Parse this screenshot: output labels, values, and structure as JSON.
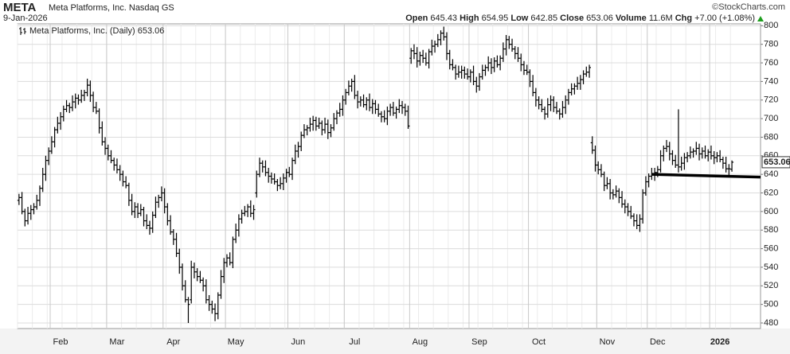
{
  "header": {
    "symbol": "META",
    "company": "Meta Platforms, Inc.",
    "exchange": "Nasdaq GS",
    "date": "9-Jan-2026",
    "credit": "©StockCharts.com",
    "quote": [
      {
        "label": "Open",
        "value": "645.43"
      },
      {
        "label": "High",
        "value": "654.95"
      },
      {
        "label": "Low",
        "value": "642.85"
      },
      {
        "label": "Close",
        "value": "653.06"
      },
      {
        "label": "Volume",
        "value": "11.6M"
      },
      {
        "label": "Chg",
        "value": "+7.00 (+1.08%)"
      }
    ]
  },
  "chart_data": {
    "type": "ohlc",
    "name": "Meta Platforms, Inc. (Daily)",
    "color": "#000000",
    "grid": true,
    "trendline_color": "#000000",
    "ylim": [
      474,
      802
    ],
    "yticks": [
      480,
      500,
      520,
      540,
      560,
      580,
      600,
      620,
      640,
      660,
      680,
      700,
      720,
      740,
      760,
      780,
      800
    ],
    "categories": [
      null,
      null,
      null,
      null,
      null,
      null,
      null,
      null,
      null,
      null,
      null,
      "Feb",
      null,
      null,
      null,
      null,
      null,
      null,
      null,
      null,
      null,
      null,
      null,
      null,
      null,
      null,
      null,
      null,
      null,
      null,
      "Mar",
      null,
      null,
      null,
      null,
      null,
      null,
      null,
      null,
      null,
      null,
      null,
      null,
      null,
      null,
      null,
      null,
      null,
      null,
      "Apr",
      null,
      null,
      null,
      null,
      null,
      null,
      null,
      null,
      null,
      null,
      null,
      null,
      null,
      null,
      null,
      null,
      null,
      null,
      null,
      null,
      "May",
      null,
      null,
      null,
      null,
      null,
      null,
      null,
      null,
      null,
      null,
      null,
      null,
      null,
      null,
      null,
      null,
      null,
      null,
      null,
      null,
      "Jun",
      null,
      null,
      null,
      null,
      null,
      null,
      null,
      null,
      null,
      null,
      null,
      null,
      null,
      null,
      null,
      null,
      null,
      null,
      "Jul",
      null,
      null,
      null,
      null,
      null,
      null,
      null,
      null,
      null,
      null,
      null,
      null,
      null,
      null,
      null,
      null,
      null,
      null,
      null,
      null,
      null,
      "Aug",
      null,
      null,
      null,
      null,
      null,
      null,
      null,
      null,
      null,
      null,
      null,
      null,
      null,
      null,
      null,
      null,
      null,
      null,
      null,
      "Sep",
      null,
      null,
      null,
      null,
      null,
      null,
      null,
      null,
      null,
      null,
      null,
      null,
      null,
      null,
      null,
      null,
      null,
      null,
      null,
      "Oct",
      null,
      null,
      null,
      null,
      null,
      null,
      null,
      null,
      null,
      null,
      null,
      null,
      null,
      null,
      null,
      null,
      null,
      null,
      null,
      null,
      null,
      null,
      "Nov",
      null,
      null,
      null,
      null,
      null,
      null,
      null,
      null,
      null,
      null,
      null,
      null,
      null,
      null,
      null,
      null,
      "Dec",
      null,
      null,
      null,
      null,
      null,
      null,
      null,
      null,
      null,
      null,
      null,
      null,
      null,
      null,
      null,
      null,
      null,
      null,
      null,
      null,
      "2026",
      null,
      null,
      null,
      null,
      null,
      null,
      null
    ],
    "open": [
      612,
      615,
      600,
      590,
      598,
      602,
      605,
      612,
      625,
      640,
      655,
      665,
      675,
      688,
      695,
      702,
      710,
      714,
      712,
      718,
      722,
      720,
      725,
      728,
      736,
      725,
      712,
      708,
      690,
      675,
      668,
      660,
      655,
      650,
      645,
      640,
      632,
      628,
      612,
      600,
      605,
      598,
      602,
      590,
      585,
      582,
      596,
      610,
      615,
      620,
      605,
      590,
      578,
      570,
      555,
      540,
      520,
      505,
      505,
      540,
      535,
      530,
      526,
      520,
      505,
      500,
      495,
      490,
      510,
      530,
      545,
      550,
      545,
      570,
      580,
      592,
      598,
      600,
      605,
      598,
      620,
      640,
      652,
      648,
      642,
      638,
      635,
      632,
      628,
      630,
      636,
      642,
      640,
      655,
      665,
      670,
      682,
      688,
      690,
      694,
      698,
      692,
      695,
      688,
      694,
      685,
      690,
      700,
      706,
      710,
      720,
      728,
      735,
      740,
      725,
      718,
      720,
      715,
      720,
      712,
      716,
      710,
      705,
      702,
      700,
      708,
      712,
      706,
      710,
      714,
      712,
      708,
      765,
      773,
      770,
      762,
      768,
      765,
      760,
      772,
      778,
      780,
      785,
      792,
      788,
      770,
      758,
      755,
      748,
      750,
      752,
      748,
      745,
      750,
      740,
      735,
      745,
      752,
      755,
      760,
      755,
      762,
      758,
      765,
      775,
      785,
      780,
      775,
      770,
      765,
      758,
      752,
      750,
      740,
      728,
      720,
      715,
      710,
      705,
      715,
      720,
      712,
      708,
      705,
      712,
      720,
      728,
      732,
      735,
      738,
      742,
      748,
      750,
      674,
      666,
      650,
      645,
      640,
      628,
      630,
      620,
      618,
      622,
      615,
      608,
      605,
      600,
      595,
      590,
      585,
      592,
      620,
      632,
      638,
      640,
      642,
      645,
      660,
      668,
      670,
      662,
      655,
      650,
      648,
      652,
      658,
      660,
      664,
      665,
      668,
      662,
      665,
      660,
      664,
      660,
      658,
      660,
      656,
      652,
      646,
      645.43
    ],
    "high": [
      619,
      621,
      603,
      605,
      607,
      609,
      618,
      628,
      647,
      660,
      669,
      681,
      691,
      702,
      707,
      714,
      720,
      717,
      725,
      727,
      726,
      731,
      731,
      743,
      741,
      729,
      718,
      711,
      697,
      680,
      672,
      666,
      658,
      657,
      650,
      644,
      638,
      631,
      619,
      610,
      609,
      608,
      605,
      597,
      590,
      600,
      616,
      618,
      627,
      625,
      609,
      596,
      581,
      577,
      560,
      544,
      526,
      508,
      547,
      545,
      539,
      536,
      529,
      527,
      510,
      504,
      501,
      513,
      537,
      550,
      554,
      556,
      573,
      587,
      597,
      602,
      606,
      608,
      612,
      607,
      644,
      658,
      655,
      655,
      647,
      642,
      641,
      635,
      637,
      641,
      646,
      648,
      658,
      672,
      675,
      686,
      694,
      693,
      701,
      703,
      702,
      701,
      698,
      701,
      699,
      694,
      706,
      709,
      717,
      725,
      732,
      741,
      743,
      747,
      730,
      724,
      726,
      723,
      727,
      721,
      720,
      716,
      708,
      709,
      713,
      716,
      718,
      713,
      721,
      719,
      716,
      714,
      776,
      780,
      777,
      772,
      774,
      771,
      775,
      785,
      784,
      791,
      795,
      799,
      793,
      774,
      764,
      758,
      757,
      757,
      756,
      754,
      753,
      757,
      745,
      749,
      758,
      758,
      767,
      765,
      766,
      768,
      768,
      782,
      790,
      789,
      786,
      778,
      777,
      770,
      762,
      758,
      753,
      747,
      733,
      724,
      721,
      713,
      722,
      725,
      724,
      718,
      711,
      719,
      725,
      732,
      738,
      738,
      745,
      747,
      752,
      756,
      758,
      681,
      671,
      654,
      651,
      643,
      637,
      635,
      624,
      628,
      625,
      622,
      613,
      609,
      606,
      598,
      597,
      597,
      624,
      638,
      641,
      647,
      647,
      649,
      666,
      671,
      677,
      675,
      666,
      661,
      710,
      659,
      663,
      664,
      670,
      668,
      675,
      673,
      669,
      671,
      667,
      671,
      665,
      664,
      666,
      659,
      659,
      651,
      654.95
    ],
    "low": [
      607,
      597,
      584,
      586,
      591,
      597,
      602,
      606,
      621,
      633,
      650,
      662,
      669,
      684,
      688,
      697,
      707,
      706,
      708,
      711,
      715,
      717,
      719,
      724,
      718,
      707,
      705,
      684,
      671,
      661,
      655,
      652,
      644,
      641,
      633,
      627,
      625,
      606,
      596,
      593,
      593,
      595,
      584,
      581,
      575,
      577,
      593,
      604,
      611,
      598,
      585,
      575,
      564,
      551,
      533,
      515,
      502,
      480,
      501,
      528,
      525,
      523,
      514,
      501,
      493,
      490,
      482,
      484,
      506,
      523,
      540,
      542,
      539,
      566,
      573,
      587,
      595,
      594,
      594,
      591,
      615,
      637,
      642,
      638,
      631,
      630,
      629,
      622,
      624,
      623,
      631,
      637,
      634,
      651,
      658,
      665,
      679,
      682,
      686,
      687,
      687,
      689,
      682,
      684,
      678,
      680,
      687,
      694,
      702,
      703,
      715,
      725,
      729,
      721,
      711,
      713,
      712,
      709,
      708,
      705,
      705,
      702,
      696,
      696,
      693,
      703,
      703,
      700,
      706,
      705,
      703,
      689,
      759,
      764,
      755,
      757,
      760,
      757,
      754,
      768,
      771,
      777,
      779,
      784,
      763,
      753,
      752,
      742,
      744,
      743,
      743,
      742,
      739,
      736,
      728,
      730,
      742,
      746,
      751,
      748,
      750,
      755,
      752,
      761,
      768,
      775,
      772,
      764,
      761,
      751,
      747,
      747,
      734,
      724,
      713,
      710,
      707,
      699,
      701,
      708,
      707,
      705,
      699,
      701,
      705,
      715,
      725,
      726,
      731,
      731,
      737,
      745,
      744,
      662,
      643,
      640,
      637,
      622,
      624,
      613,
      613,
      615,
      609,
      604,
      598,
      595,
      592,
      584,
      581,
      578,
      587,
      617,
      626,
      634,
      633,
      637,
      642,
      654,
      664,
      655,
      650,
      647,
      642,
      644,
      645,
      653,
      657,
      658,
      661,
      655,
      657,
      657,
      654,
      656,
      651,
      653,
      653,
      646,
      642,
      639,
      642.85
    ],
    "close": [
      615,
      600,
      590,
      598,
      602,
      605,
      612,
      625,
      640,
      655,
      665,
      675,
      688,
      695,
      702,
      710,
      714,
      712,
      718,
      722,
      720,
      725,
      728,
      736,
      725,
      712,
      708,
      690,
      675,
      668,
      660,
      655,
      650,
      645,
      640,
      632,
      628,
      612,
      600,
      605,
      598,
      602,
      590,
      585,
      582,
      596,
      610,
      615,
      620,
      605,
      590,
      578,
      570,
      555,
      540,
      520,
      505,
      500,
      540,
      535,
      530,
      526,
      520,
      505,
      500,
      495,
      490,
      510,
      530,
      545,
      550,
      545,
      570,
      580,
      592,
      598,
      600,
      605,
      598,
      602,
      640,
      652,
      648,
      642,
      638,
      635,
      632,
      628,
      630,
      636,
      642,
      640,
      655,
      665,
      670,
      682,
      688,
      690,
      694,
      698,
      692,
      695,
      688,
      694,
      685,
      690,
      700,
      706,
      710,
      720,
      728,
      735,
      740,
      725,
      718,
      720,
      715,
      720,
      712,
      716,
      710,
      705,
      702,
      700,
      708,
      712,
      706,
      710,
      714,
      712,
      708,
      692,
      773,
      770,
      762,
      768,
      765,
      760,
      772,
      778,
      780,
      785,
      792,
      788,
      770,
      758,
      755,
      748,
      750,
      752,
      748,
      745,
      750,
      740,
      735,
      745,
      752,
      755,
      760,
      755,
      762,
      758,
      765,
      775,
      785,
      780,
      775,
      770,
      765,
      758,
      752,
      750,
      740,
      728,
      720,
      715,
      710,
      705,
      715,
      720,
      712,
      708,
      705,
      712,
      720,
      728,
      732,
      735,
      738,
      742,
      748,
      750,
      755,
      666,
      650,
      645,
      640,
      628,
      630,
      620,
      618,
      622,
      615,
      608,
      605,
      600,
      595,
      590,
      585,
      592,
      620,
      632,
      638,
      640,
      642,
      645,
      660,
      668,
      670,
      662,
      655,
      650,
      648,
      652,
      658,
      660,
      664,
      665,
      668,
      662,
      665,
      660,
      664,
      660,
      658,
      660,
      656,
      652,
      646,
      646,
      653.06
    ],
    "trendline": {
      "values": [
        640,
        637
      ]
    }
  }
}
